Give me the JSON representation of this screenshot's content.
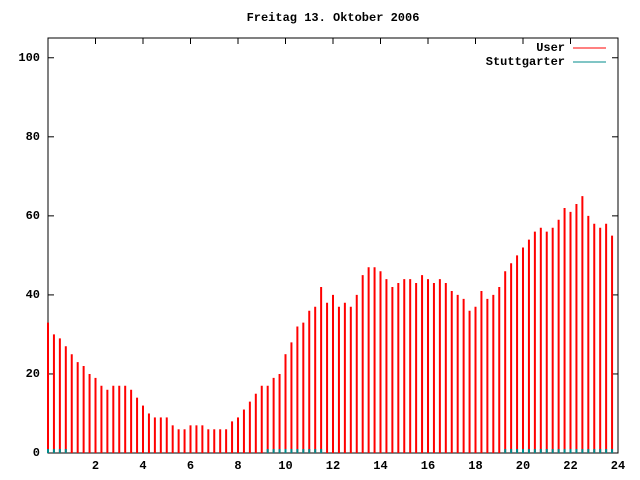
{
  "chart_data": {
    "type": "impulses",
    "title": "Freitag 13. Oktober 2006",
    "x": [
      0,
      0.25,
      0.5,
      0.75,
      1,
      1.25,
      1.5,
      1.75,
      2,
      2.25,
      2.5,
      2.75,
      3,
      3.25,
      3.5,
      3.75,
      4,
      4.25,
      4.5,
      4.75,
      5,
      5.25,
      5.5,
      5.75,
      6,
      6.25,
      6.5,
      6.75,
      7,
      7.25,
      7.5,
      7.75,
      8,
      8.25,
      8.5,
      8.75,
      9,
      9.25,
      9.5,
      9.75,
      10,
      10.25,
      10.5,
      10.75,
      11,
      11.25,
      11.5,
      11.75,
      12,
      12.25,
      12.5,
      12.75,
      13,
      13.25,
      13.5,
      13.75,
      14,
      14.25,
      14.5,
      14.75,
      15,
      15.25,
      15.5,
      15.75,
      16,
      16.25,
      16.5,
      16.75,
      17,
      17.25,
      17.5,
      17.75,
      18,
      18.25,
      18.5,
      18.75,
      19,
      19.25,
      19.5,
      19.75,
      20,
      20.25,
      20.5,
      20.75,
      21,
      21.25,
      21.5,
      21.75,
      22,
      22.25,
      22.5,
      22.75,
      23,
      23.25,
      23.5,
      23.75
    ],
    "series": [
      {
        "name": "User",
        "color": "#ff0000",
        "values": [
          33,
          30,
          29,
          27,
          25,
          23,
          22,
          20,
          19,
          17,
          16,
          17,
          17,
          17,
          16,
          14,
          12,
          10,
          9,
          9,
          9,
          7,
          6,
          6,
          7,
          7,
          7,
          6,
          6,
          6,
          6,
          8,
          9,
          11,
          13,
          15,
          17,
          17,
          19,
          20,
          25,
          28,
          32,
          33,
          36,
          37,
          42,
          38,
          40,
          37,
          38,
          37,
          40,
          45,
          47,
          47,
          46,
          44,
          42,
          43,
          44,
          44,
          43,
          45,
          44,
          43,
          44,
          43,
          41,
          40,
          39,
          36,
          37,
          41,
          39,
          40,
          42,
          46,
          48,
          50,
          52,
          54,
          56,
          57,
          56,
          57,
          59,
          62,
          61,
          63,
          65,
          60,
          58,
          57,
          58,
          55
        ]
      },
      {
        "name": "Stuttgarter",
        "color": "#008b8b",
        "values": [
          1,
          1,
          1,
          1,
          null,
          null,
          null,
          null,
          null,
          null,
          null,
          null,
          null,
          null,
          null,
          null,
          null,
          null,
          null,
          null,
          null,
          null,
          null,
          null,
          null,
          null,
          null,
          null,
          null,
          null,
          null,
          null,
          null,
          null,
          null,
          null,
          null,
          1,
          1,
          1,
          1,
          1,
          1,
          1,
          1,
          1,
          1,
          null,
          null,
          null,
          null,
          null,
          null,
          null,
          null,
          null,
          null,
          null,
          null,
          null,
          null,
          null,
          null,
          null,
          null,
          null,
          null,
          null,
          null,
          null,
          null,
          null,
          null,
          null,
          null,
          null,
          null,
          1,
          1,
          1,
          1,
          1,
          1,
          1,
          1,
          1,
          1,
          1,
          1,
          1,
          1,
          1,
          1,
          1,
          1,
          1
        ]
      }
    ],
    "xlim": [
      0,
      24
    ],
    "xticks": [
      2,
      4,
      6,
      8,
      10,
      12,
      14,
      16,
      18,
      20,
      22,
      24
    ],
    "ylim": [
      0,
      105
    ],
    "yticks": [
      0,
      20,
      40,
      60,
      80,
      100
    ],
    "legend": "top-right"
  }
}
